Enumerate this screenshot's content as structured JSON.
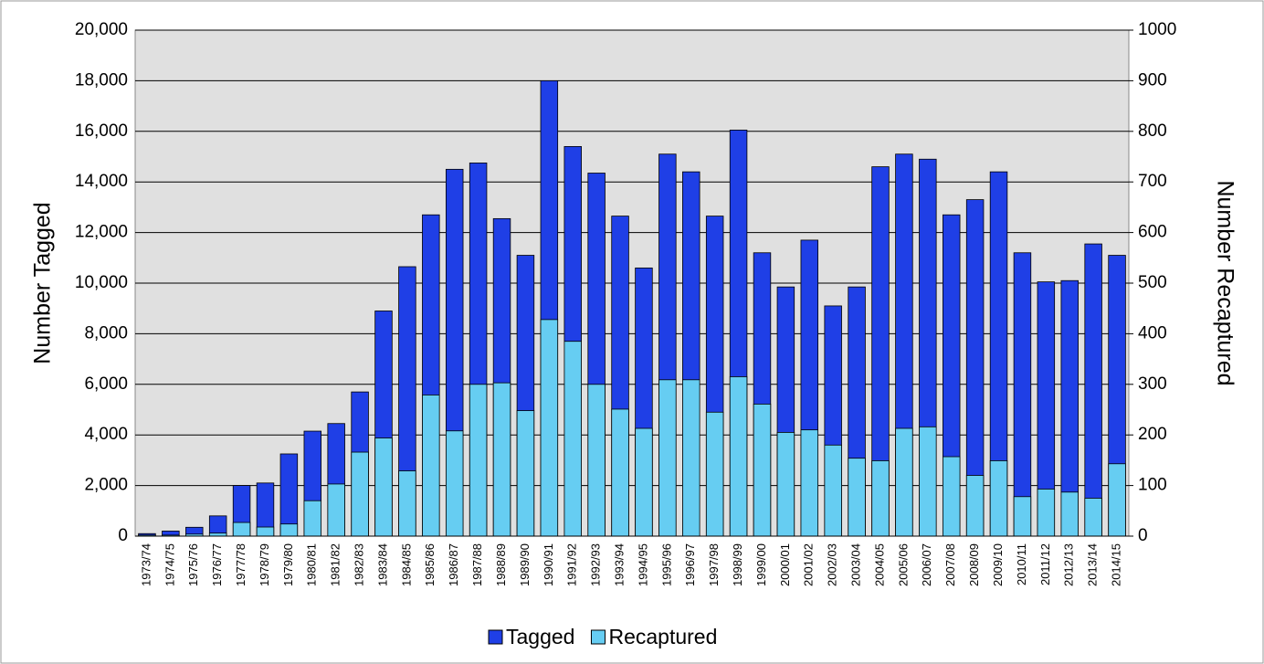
{
  "chart_data": {
    "type": "bar",
    "y_label": "Number Tagged",
    "y2_label": "Number Recaptured",
    "categories": [
      "1973/74",
      "1974/75",
      "1975/76",
      "1976/77",
      "1977/78",
      "1978/79",
      "1979/80",
      "1980/81",
      "1981/82",
      "1982/83",
      "1983/84",
      "1984/85",
      "1985/86",
      "1986/87",
      "1987/88",
      "1988/89",
      "1989/90",
      "1990/91",
      "1991/92",
      "1992/93",
      "1993/94",
      "1994/95",
      "1995/96",
      "1996/97",
      "1997/98",
      "1998/99",
      "1999/00",
      "2000/01",
      "2001/02",
      "2002/03",
      "2003/04",
      "2004/05",
      "2005/06",
      "2006/07",
      "2007/08",
      "2008/09",
      "2009/10",
      "2010/11",
      "2011/12",
      "2012/13",
      "2013/14",
      "2014/15"
    ],
    "series": [
      {
        "name": "Tagged",
        "color": "#1f3fe6",
        "values": [
          100,
          200,
          350,
          800,
          2000,
          2100,
          3250,
          4150,
          4450,
          5700,
          8900,
          10650,
          12700,
          14500,
          14750,
          12550,
          11100,
          18000,
          15400,
          14350,
          12650,
          10600,
          15100,
          14400,
          12650,
          16050,
          11200,
          9850,
          11700,
          9100,
          9850,
          14600,
          15100,
          14900,
          12700,
          13300,
          14400,
          11200,
          10050,
          10100,
          11550,
          11100
        ]
      },
      {
        "name": "Recaptured",
        "color": "#66cdf2",
        "axis": "y2",
        "values": [
          2,
          2,
          4,
          6,
          27,
          18,
          24,
          70,
          103,
          166,
          194,
          129,
          279,
          208,
          300,
          303,
          248,
          428,
          385,
          300,
          251,
          213,
          309,
          309,
          245,
          315,
          261,
          205,
          210,
          180,
          154,
          149,
          213,
          216,
          157,
          120,
          149,
          78,
          93,
          87,
          75,
          143
        ]
      }
    ],
    "ylim": [
      0,
      20000
    ],
    "yticks": [
      0,
      {
        "value": 2000,
        "label": "2,000"
      },
      {
        "value": 4000,
        "label": "4,000"
      },
      {
        "value": 6000,
        "label": "6,000"
      },
      {
        "value": 8000,
        "label": "8,000"
      },
      {
        "value": 10000,
        "label": "10,000"
      },
      {
        "value": 12000,
        "label": "12,000"
      },
      {
        "value": 14000,
        "label": "14,000"
      },
      {
        "value": 16000,
        "label": "16,000"
      },
      {
        "value": 18000,
        "label": "18,000"
      },
      {
        "value": 20000,
        "label": "20,000"
      }
    ],
    "y2lim": [
      0,
      1000
    ],
    "y2ticks": [
      0,
      100,
      200,
      300,
      400,
      500,
      600,
      700,
      800,
      900,
      1000
    ],
    "grid": true,
    "legend": "bottom"
  }
}
